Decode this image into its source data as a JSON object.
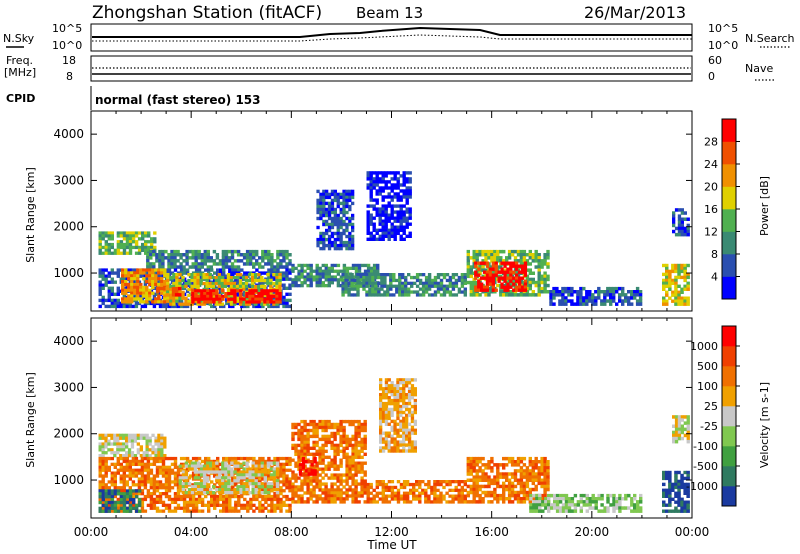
{
  "header": {
    "title": "Zhongshan Station (fitACF)",
    "beam": "Beam 13",
    "date": "26/Mar/2013"
  },
  "status_panel": {
    "nsky_label": "N.Sky",
    "nsky_tick_top": "10^5",
    "nsky_tick_bottom": "10^0",
    "nsearch_label": "N.Search",
    "nsearch_tick_top": "10^5",
    "nsearch_tick_bottom": "10^0",
    "freq_label_1": "Freq.",
    "freq_label_2": "[MHz]",
    "freq_tick_top": "18",
    "freq_tick_bottom": "8",
    "nave_label": "Nave",
    "nave_tick_top": "60",
    "nave_tick_bottom": "0",
    "cpid_label": "CPID",
    "cpid_value": "normal (fast stereo) 153"
  },
  "chart_data": [
    {
      "type": "heatmap",
      "name": "power",
      "ylabel": "Slant Range [km]",
      "yticks": [
        "1000",
        "2000",
        "3000",
        "4000"
      ],
      "ylim": [
        180,
        4500
      ],
      "xlim": [
        0,
        24
      ],
      "colorbar": {
        "label": "Power [dB]",
        "ticks": [
          "4",
          "8",
          "12",
          "16",
          "20",
          "24",
          "28"
        ],
        "colors": [
          "#0000ff",
          "#2a4fb0",
          "#3a8a73",
          "#50b050",
          "#e0d000",
          "#f09000",
          "#f05000",
          "#ff0000"
        ]
      },
      "regions": [
        {
          "t0": 0.3,
          "t1": 2.6,
          "r0": 1400,
          "r1": 1900,
          "v": 3
        },
        {
          "t0": 2.2,
          "t1": 8.0,
          "r0": 1100,
          "r1": 1500,
          "v": 2
        },
        {
          "t0": 0.3,
          "t1": 8.0,
          "r0": 250,
          "r1": 1100,
          "v": 1
        },
        {
          "t0": 1.2,
          "t1": 3.0,
          "r0": 350,
          "r1": 1100,
          "v": 5
        },
        {
          "t0": 3.0,
          "t1": 7.6,
          "r0": 300,
          "r1": 1000,
          "v": 4
        },
        {
          "t0": 4.0,
          "t1": 7.6,
          "r0": 350,
          "r1": 650,
          "v": 7
        },
        {
          "t0": 2.6,
          "t1": 3.6,
          "r0": 500,
          "r1": 700,
          "v": 6
        },
        {
          "t0": 8.0,
          "t1": 11.5,
          "r0": 700,
          "r1": 1200,
          "v": 2
        },
        {
          "t0": 9.0,
          "t1": 10.5,
          "r0": 1500,
          "r1": 2800,
          "v": 1
        },
        {
          "t0": 11.0,
          "t1": 12.8,
          "r0": 1700,
          "r1": 3200,
          "v": 0
        },
        {
          "t0": 10.0,
          "t1": 15.0,
          "r0": 500,
          "r1": 1000,
          "v": 2
        },
        {
          "t0": 15.0,
          "t1": 18.3,
          "r0": 500,
          "r1": 1500,
          "v": 3
        },
        {
          "t0": 15.3,
          "t1": 17.4,
          "r0": 600,
          "r1": 1250,
          "v": 7
        },
        {
          "t0": 18.3,
          "t1": 22.0,
          "r0": 300,
          "r1": 700,
          "v": 1
        },
        {
          "t0": 22.8,
          "t1": 23.9,
          "r0": 300,
          "r1": 1200,
          "v": 4
        },
        {
          "t0": 23.2,
          "t1": 23.9,
          "r0": 1800,
          "r1": 2400,
          "v": 1
        }
      ]
    },
    {
      "type": "heatmap",
      "name": "velocity",
      "ylabel": "Slant Range [km]",
      "yticks": [
        "1000",
        "2000",
        "3000",
        "4000"
      ],
      "ylim": [
        180,
        4500
      ],
      "xlim": [
        0,
        24
      ],
      "xticks": [
        "00:00",
        "04:00",
        "08:00",
        "12:00",
        "16:00",
        "20:00",
        "00:00"
      ],
      "xlabel": "Time UT",
      "colorbar": {
        "label": "Velocity [m s-1]",
        "ticks": [
          "1000",
          "500",
          "100",
          "25",
          "-25",
          "-100",
          "-500",
          "-1000"
        ],
        "colors": [
          "#1a3aa0",
          "#2f7a60",
          "#40a040",
          "#80c850",
          "#c8c8c8",
          "#f0a000",
          "#f07000",
          "#f04000",
          "#ff0000"
        ]
      },
      "regions": [
        {
          "t0": 0.3,
          "t1": 3.0,
          "r0": 1500,
          "r1": 2000,
          "v": 4
        },
        {
          "t0": 0.3,
          "t1": 8.0,
          "r0": 300,
          "r1": 1500,
          "v": 6
        },
        {
          "t0": 0.3,
          "t1": 2.0,
          "r0": 300,
          "r1": 800,
          "v": 1
        },
        {
          "t0": 3.5,
          "t1": 7.5,
          "r0": 700,
          "r1": 1400,
          "v": 4
        },
        {
          "t0": 8.0,
          "t1": 11.0,
          "r0": 500,
          "r1": 2300,
          "v": 6
        },
        {
          "t0": 8.3,
          "t1": 9.0,
          "r0": 1100,
          "r1": 1500,
          "v": 8
        },
        {
          "t0": 11.0,
          "t1": 15.0,
          "r0": 500,
          "r1": 1000,
          "v": 6
        },
        {
          "t0": 11.5,
          "t1": 13.0,
          "r0": 1600,
          "r1": 3200,
          "v": 5
        },
        {
          "t0": 15.0,
          "t1": 18.3,
          "r0": 500,
          "r1": 1500,
          "v": 6
        },
        {
          "t0": 17.5,
          "t1": 22.0,
          "r0": 300,
          "r1": 700,
          "v": 3
        },
        {
          "t0": 22.8,
          "t1": 23.9,
          "r0": 300,
          "r1": 1200,
          "v": 0
        },
        {
          "t0": 23.2,
          "t1": 23.9,
          "r0": 1800,
          "r1": 2400,
          "v": 4
        }
      ]
    }
  ]
}
